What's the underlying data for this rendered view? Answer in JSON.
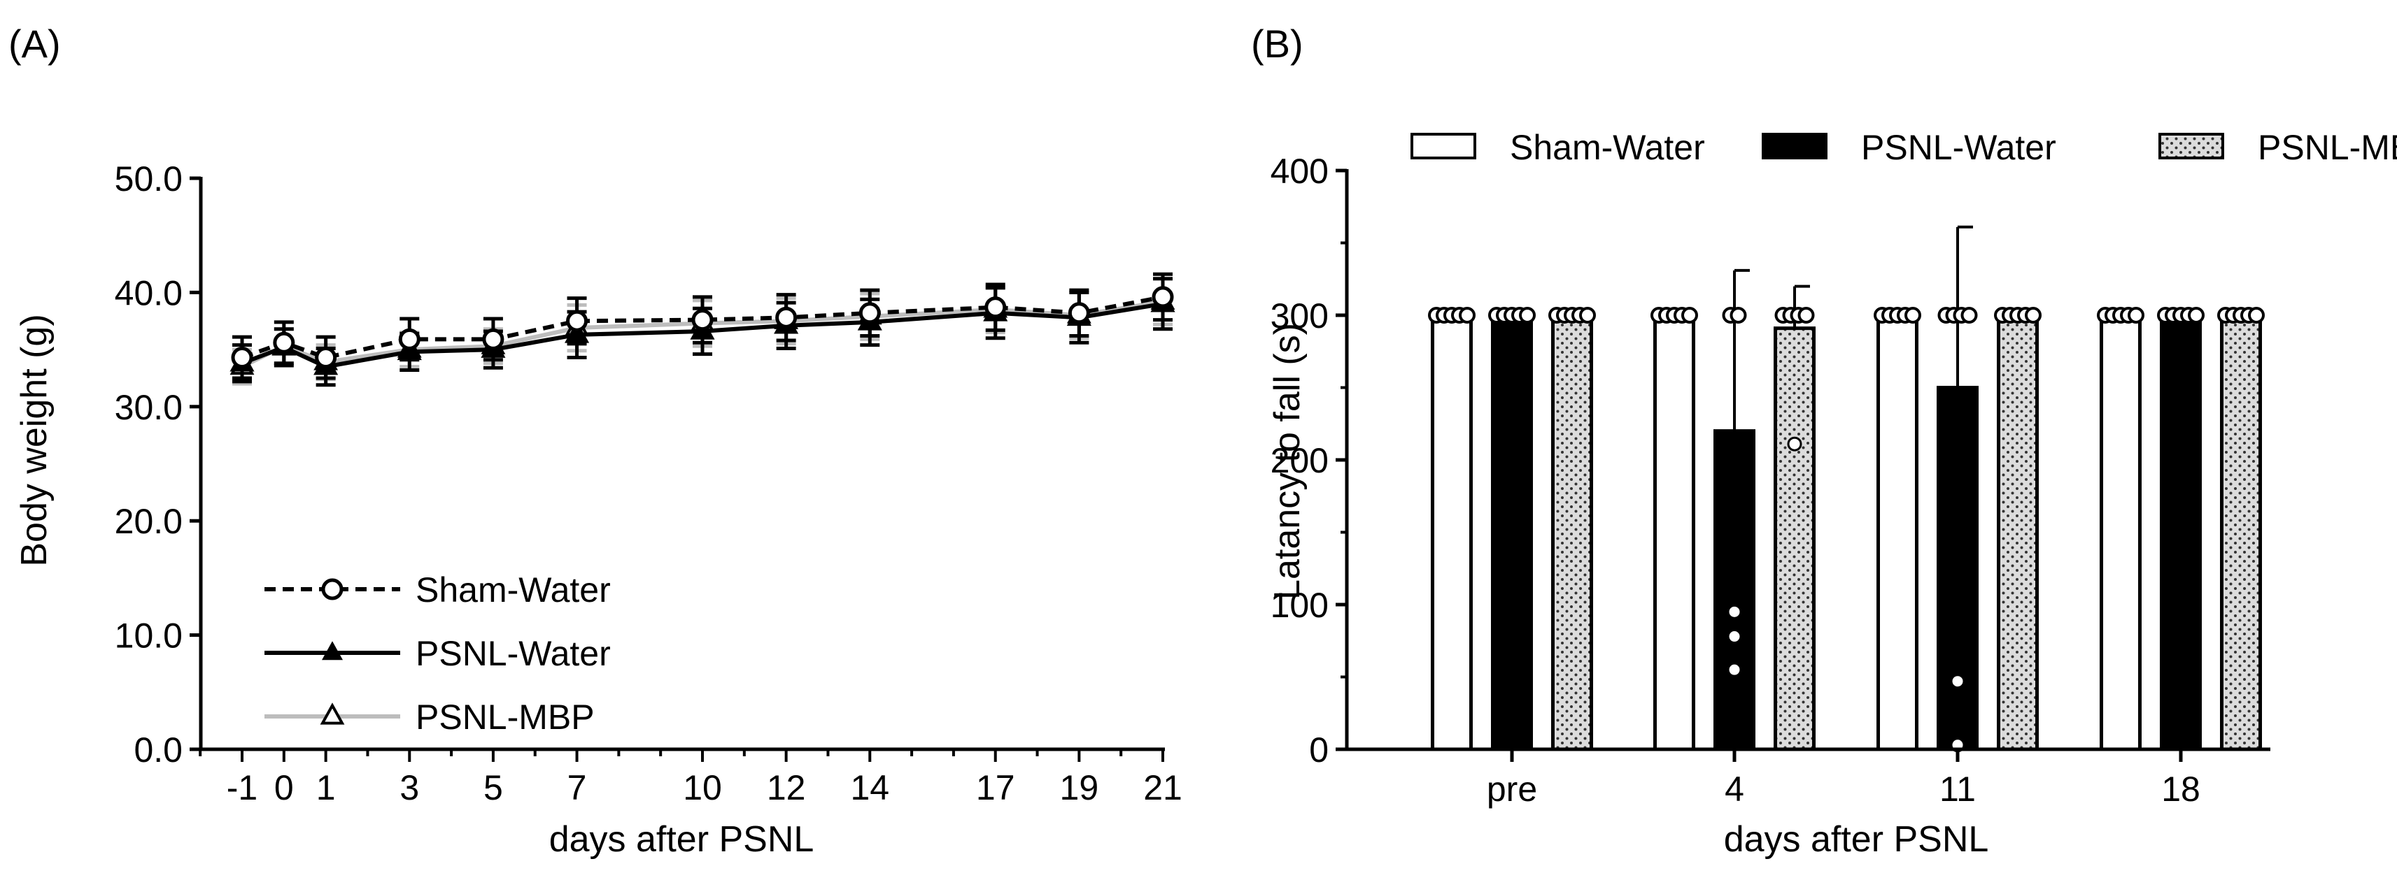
{
  "chart_data": [
    {
      "panel_label": "(A)",
      "type": "line",
      "ylabel": "Body weight (g)",
      "xlabel": "days after PSNL",
      "ylim": [
        0,
        50
      ],
      "yticks": [
        "0.0",
        "10.0",
        "20.0",
        "30.0",
        "40.0",
        "50.0"
      ],
      "xlim": [
        -2,
        21
      ],
      "x": [
        -1,
        0,
        1,
        3,
        5,
        7,
        10,
        12,
        14,
        17,
        19,
        21
      ],
      "xtick_labels": [
        "-1",
        "0",
        "1",
        "3",
        "5",
        "7",
        "10",
        "12",
        "14",
        "17",
        "19",
        "21"
      ],
      "legend_position": "bottom-left",
      "series": [
        {
          "name": "Sham-Water",
          "marker": "open-circle",
          "line": "dashed",
          "color": "#000000",
          "values": [
            34.3,
            35.6,
            34.3,
            35.9,
            35.9,
            37.5,
            37.6,
            37.8,
            38.2,
            38.7,
            38.2,
            39.6
          ],
          "errors": [
            1.8,
            1.8,
            1.8,
            1.8,
            1.8,
            2.0,
            2.0,
            2.0,
            2.0,
            2.0,
            2.0,
            2.0
          ]
        },
        {
          "name": "PSNL-Water",
          "marker": "filled-triangle",
          "line": "solid",
          "color": "#000000",
          "values": [
            33.8,
            35.2,
            33.5,
            34.8,
            35.0,
            36.3,
            36.6,
            37.1,
            37.4,
            38.2,
            37.8,
            39.0
          ],
          "errors": [
            1.6,
            1.6,
            1.6,
            1.6,
            1.6,
            2.0,
            2.0,
            2.0,
            2.0,
            2.2,
            2.2,
            2.2
          ]
        },
        {
          "name": "PSNL-MBP",
          "marker": "open-triangle",
          "line": "solid",
          "color": "#bdbdbd",
          "values": [
            33.5,
            35.3,
            33.9,
            35.0,
            35.3,
            36.9,
            37.3,
            37.5,
            37.9,
            38.5,
            38.0,
            39.2
          ],
          "errors": [
            1.5,
            1.5,
            1.5,
            1.5,
            1.5,
            2.0,
            2.0,
            2.0,
            2.0,
            2.0,
            2.0,
            2.0
          ]
        }
      ]
    },
    {
      "panel_label": "(B)",
      "type": "bar",
      "ylabel": "Latancy to fall (s)",
      "xlabel": "days after PSNL",
      "ylim": [
        0,
        400
      ],
      "yticks": [
        "0",
        "100",
        "200",
        "300",
        "400"
      ],
      "categories": [
        "pre",
        "4",
        "11",
        "18"
      ],
      "legend_position": "top",
      "series": [
        {
          "name": "Sham-Water",
          "fill": "white",
          "values": [
            300,
            300,
            300,
            300
          ],
          "errors": [
            0,
            0,
            0,
            0
          ],
          "points": [
            [
              300,
              300,
              300,
              300,
              300
            ],
            [
              300,
              300,
              300,
              300,
              300
            ],
            [
              300,
              300,
              300,
              300,
              300
            ],
            [
              300,
              300,
              300,
              300,
              300
            ]
          ]
        },
        {
          "name": "PSNL-Water",
          "fill": "black",
          "values": [
            300,
            220,
            250,
            300
          ],
          "errors": [
            0,
            111,
            111,
            0
          ],
          "points": [
            [
              300,
              300,
              300,
              300,
              300
            ],
            [
              300,
              300,
              95,
              78,
              55
            ],
            [
              300,
              300,
              300,
              300,
              47,
              3
            ],
            [
              300,
              300,
              300,
              300,
              300
            ]
          ]
        },
        {
          "name": "PSNL-MBP",
          "fill": "dotted",
          "values": [
            300,
            291,
            300,
            300
          ],
          "errors": [
            0,
            29,
            0,
            0
          ],
          "points": [
            [
              300,
              300,
              300,
              300,
              300
            ],
            [
              300,
              300,
              300,
              300,
              211
            ],
            [
              300,
              300,
              300,
              300,
              300
            ],
            [
              300,
              300,
              300,
              300,
              300
            ]
          ]
        }
      ]
    }
  ]
}
